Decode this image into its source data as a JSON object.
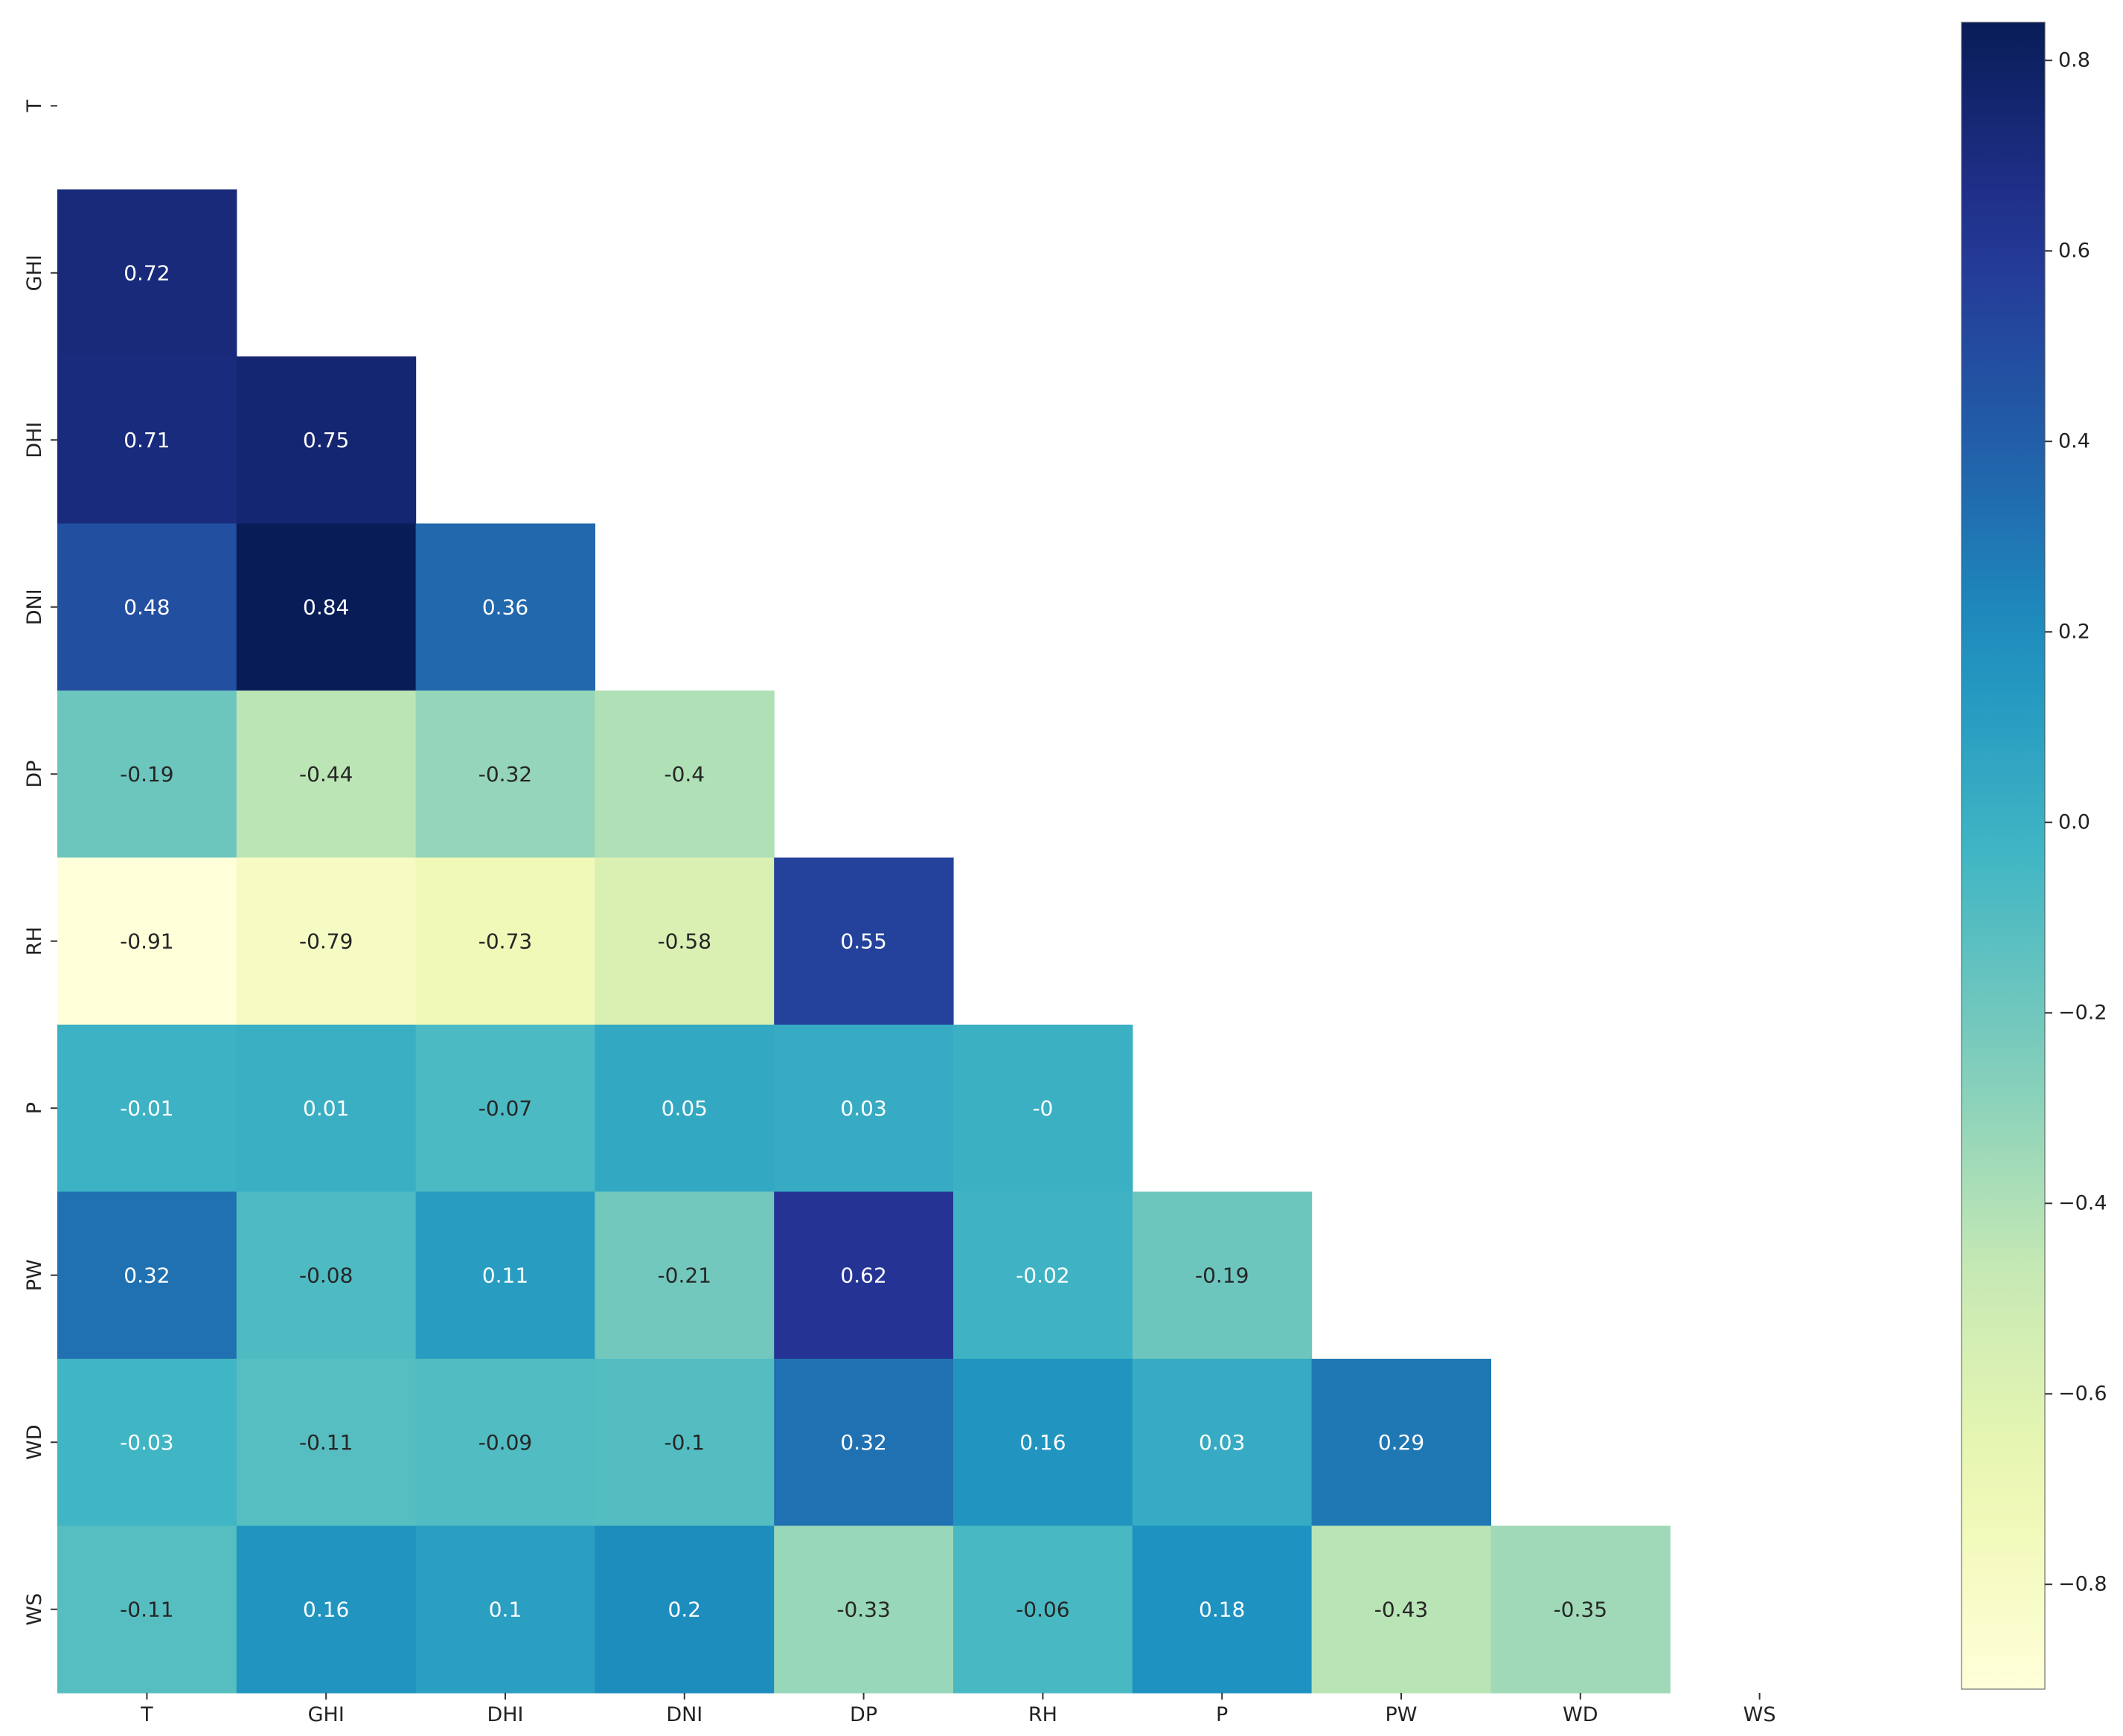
{
  "chart_data": {
    "type": "heatmap",
    "title": "",
    "xlabel": "",
    "ylabel": "",
    "variables": [
      "T",
      "GHI",
      "DHI",
      "DNI",
      "DP",
      "RH",
      "P",
      "PW",
      "WD",
      "WS"
    ],
    "mask": "upper-triangle-including-diagonal",
    "colormap": "YlGnBu",
    "color_range": [
      -0.91,
      0.84
    ],
    "colorbar": {
      "ticks": [
        0.8,
        0.6,
        0.4,
        0.2,
        0.0,
        -0.2,
        -0.4,
        -0.6,
        -0.8
      ],
      "tick_labels": [
        "0.8",
        "0.6",
        "0.4",
        "0.2",
        "0.0",
        "−0.2",
        "−0.4",
        "−0.6",
        "−0.8"
      ],
      "placement": "right"
    },
    "grid": false,
    "cells": [
      {
        "row": "GHI",
        "col": "T",
        "value": 0.72,
        "label": "0.72"
      },
      {
        "row": "DHI",
        "col": "T",
        "value": 0.71,
        "label": "0.71"
      },
      {
        "row": "DHI",
        "col": "GHI",
        "value": 0.75,
        "label": "0.75"
      },
      {
        "row": "DNI",
        "col": "T",
        "value": 0.48,
        "label": "0.48"
      },
      {
        "row": "DNI",
        "col": "GHI",
        "value": 0.84,
        "label": "0.84"
      },
      {
        "row": "DNI",
        "col": "DHI",
        "value": 0.36,
        "label": "0.36"
      },
      {
        "row": "DP",
        "col": "T",
        "value": -0.19,
        "label": "-0.19"
      },
      {
        "row": "DP",
        "col": "GHI",
        "value": -0.44,
        "label": "-0.44"
      },
      {
        "row": "DP",
        "col": "DHI",
        "value": -0.32,
        "label": "-0.32"
      },
      {
        "row": "DP",
        "col": "DNI",
        "value": -0.4,
        "label": "-0.4"
      },
      {
        "row": "RH",
        "col": "T",
        "value": -0.91,
        "label": "-0.91"
      },
      {
        "row": "RH",
        "col": "GHI",
        "value": -0.79,
        "label": "-0.79"
      },
      {
        "row": "RH",
        "col": "DHI",
        "value": -0.73,
        "label": "-0.73"
      },
      {
        "row": "RH",
        "col": "DNI",
        "value": -0.58,
        "label": "-0.58"
      },
      {
        "row": "RH",
        "col": "DP",
        "value": 0.55,
        "label": "0.55"
      },
      {
        "row": "P",
        "col": "T",
        "value": -0.01,
        "label": "-0.01"
      },
      {
        "row": "P",
        "col": "GHI",
        "value": 0.01,
        "label": "0.01"
      },
      {
        "row": "P",
        "col": "DHI",
        "value": -0.07,
        "label": "-0.07"
      },
      {
        "row": "P",
        "col": "DNI",
        "value": 0.05,
        "label": "0.05"
      },
      {
        "row": "P",
        "col": "DP",
        "value": 0.03,
        "label": "0.03"
      },
      {
        "row": "P",
        "col": "RH",
        "value": 0.0,
        "label": "-0"
      },
      {
        "row": "PW",
        "col": "T",
        "value": 0.32,
        "label": "0.32"
      },
      {
        "row": "PW",
        "col": "GHI",
        "value": -0.08,
        "label": "-0.08"
      },
      {
        "row": "PW",
        "col": "DHI",
        "value": 0.11,
        "label": "0.11"
      },
      {
        "row": "PW",
        "col": "DNI",
        "value": -0.21,
        "label": "-0.21"
      },
      {
        "row": "PW",
        "col": "DP",
        "value": 0.62,
        "label": "0.62"
      },
      {
        "row": "PW",
        "col": "RH",
        "value": -0.02,
        "label": "-0.02"
      },
      {
        "row": "PW",
        "col": "P",
        "value": -0.19,
        "label": "-0.19"
      },
      {
        "row": "WD",
        "col": "T",
        "value": -0.03,
        "label": "-0.03"
      },
      {
        "row": "WD",
        "col": "GHI",
        "value": -0.11,
        "label": "-0.11"
      },
      {
        "row": "WD",
        "col": "DHI",
        "value": -0.09,
        "label": "-0.09"
      },
      {
        "row": "WD",
        "col": "DNI",
        "value": -0.1,
        "label": "-0.1"
      },
      {
        "row": "WD",
        "col": "DP",
        "value": 0.32,
        "label": "0.32"
      },
      {
        "row": "WD",
        "col": "RH",
        "value": 0.16,
        "label": "0.16"
      },
      {
        "row": "WD",
        "col": "P",
        "value": 0.03,
        "label": "0.03"
      },
      {
        "row": "WD",
        "col": "PW",
        "value": 0.29,
        "label": "0.29"
      },
      {
        "row": "WS",
        "col": "T",
        "value": -0.11,
        "label": "-0.11"
      },
      {
        "row": "WS",
        "col": "GHI",
        "value": 0.16,
        "label": "0.16"
      },
      {
        "row": "WS",
        "col": "DHI",
        "value": 0.1,
        "label": "0.1"
      },
      {
        "row": "WS",
        "col": "DNI",
        "value": 0.2,
        "label": "0.2"
      },
      {
        "row": "WS",
        "col": "DP",
        "value": -0.33,
        "label": "-0.33"
      },
      {
        "row": "WS",
        "col": "RH",
        "value": -0.06,
        "label": "-0.06"
      },
      {
        "row": "WS",
        "col": "P",
        "value": 0.18,
        "label": "0.18"
      },
      {
        "row": "WS",
        "col": "PW",
        "value": -0.43,
        "label": "-0.43"
      },
      {
        "row": "WS",
        "col": "WD",
        "value": -0.35,
        "label": "-0.35"
      }
    ]
  }
}
